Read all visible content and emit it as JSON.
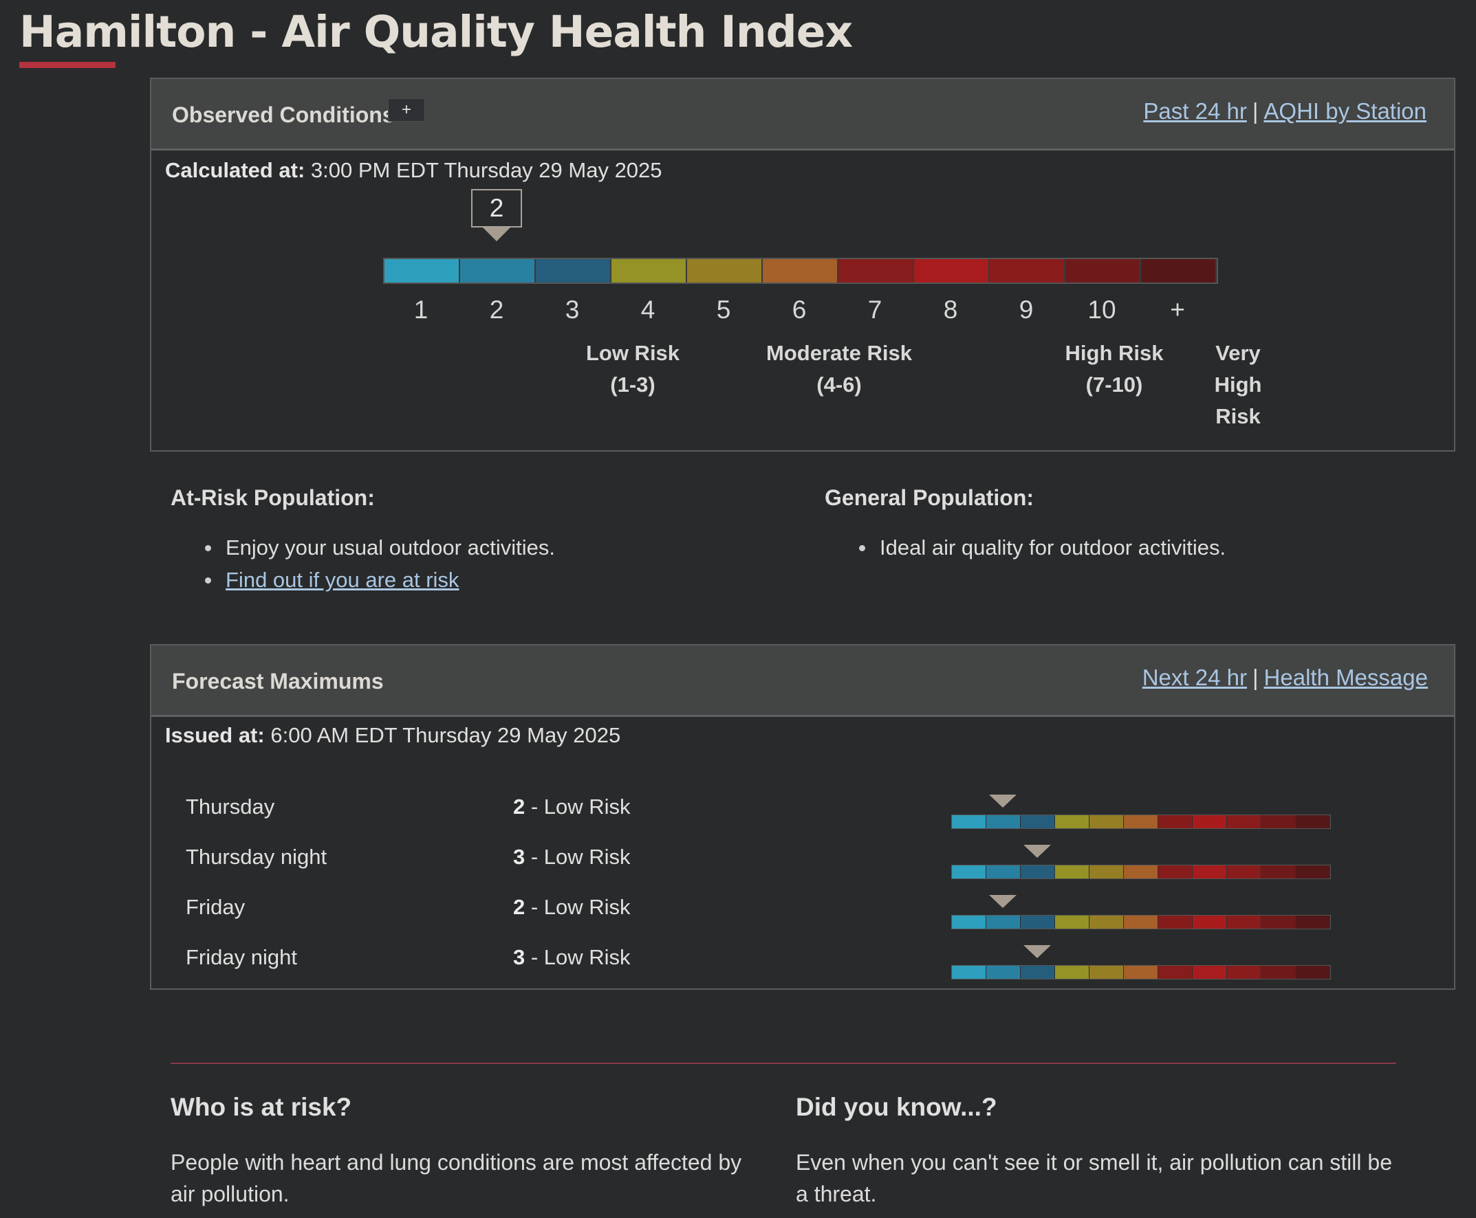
{
  "page": {
    "title": "Hamilton - Air Quality Health Index"
  },
  "colors": {
    "scale": [
      "#2ea0bd",
      "#2981a1",
      "#255d7c",
      "#959325",
      "#967e25",
      "#a6602a",
      "#861d1c",
      "#a81c1d",
      "#8a1c1c",
      "#6f1a1a",
      "#551718"
    ],
    "accent": "#b3323d",
    "link": "#a9c6e2"
  },
  "observed": {
    "title": "Observed Conditions",
    "info_icon": "+",
    "links": {
      "past": "Past 24 hr",
      "separator": "|",
      "by_station": "AQHI by Station"
    },
    "calc_label": "Calculated at:",
    "calc_time": "3:00 PM EDT Thursday 29 May 2025",
    "current_value": 2,
    "current_text": "2",
    "ticks": [
      "1",
      "2",
      "3",
      "4",
      "5",
      "6",
      "7",
      "8",
      "9",
      "10",
      "+"
    ],
    "risk_groups": [
      {
        "line1": "Low Risk",
        "line2": "(1-3)",
        "line3": ""
      },
      {
        "line1": "Moderate Risk",
        "line2": "(4-6)",
        "line3": ""
      },
      {
        "line1": "High Risk",
        "line2": "(7-10)",
        "line3": ""
      },
      {
        "line1": "Very",
        "line2": "High",
        "line3": "Risk"
      }
    ]
  },
  "health": {
    "at_risk": {
      "heading": "At-Risk Population:",
      "items": [
        "Enjoy your usual outdoor activities."
      ],
      "link": "Find out if you are at risk"
    },
    "general": {
      "heading": "General Population:",
      "items": [
        "Ideal air quality for outdoor activities."
      ]
    }
  },
  "forecast": {
    "title": "Forecast Maximums",
    "links": {
      "next": "Next 24 hr",
      "separator": "|",
      "health": "Health Message"
    },
    "issued_label": "Issued at:",
    "issued_time": "6:00 AM EDT Thursday 29 May 2025",
    "rows": [
      {
        "period": "Thursday",
        "value": 2,
        "value_text": "2",
        "category": " - Low Risk"
      },
      {
        "period": "Thursday night",
        "value": 3,
        "value_text": "3",
        "category": " - Low Risk"
      },
      {
        "period": "Friday",
        "value": 2,
        "value_text": "2",
        "category": " - Low Risk"
      },
      {
        "period": "Friday night",
        "value": 3,
        "value_text": "3",
        "category": " - Low Risk"
      }
    ]
  },
  "info": {
    "who": {
      "heading": "Who is at risk?",
      "line1": "People with heart and lung conditions are most affected by",
      "line2": "air pollution."
    },
    "did_you_know": {
      "heading": "Did you know...?",
      "line1": "Even when you can't see it or smell it, air pollution can still be",
      "line2": "a threat."
    }
  }
}
